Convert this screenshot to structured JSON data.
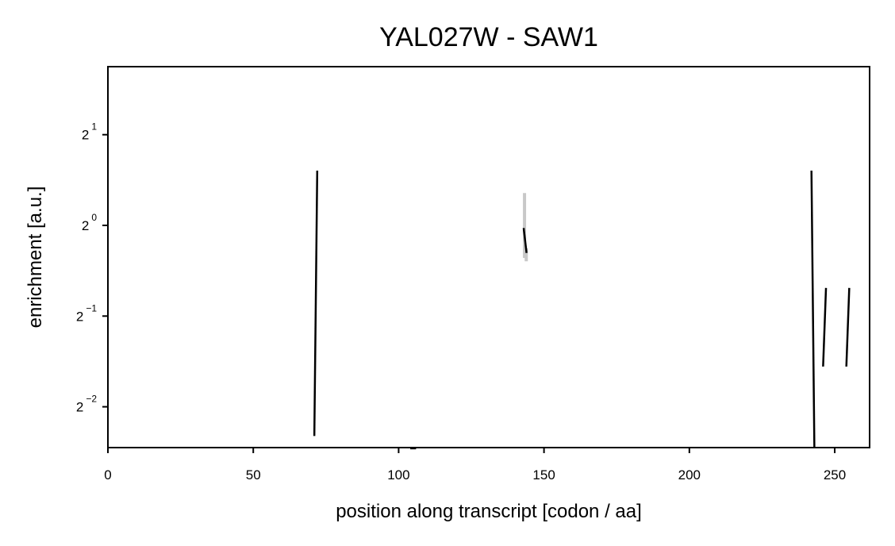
{
  "chart_data": {
    "type": "line",
    "title": "YAL027W - SAW1",
    "xlabel": "position along transcript [codon / aa]",
    "ylabel": "enrichment [a.u.]",
    "xlim": [
      0,
      262
    ],
    "ylim_log2": [
      -2.45,
      1.75
    ],
    "y_scale": "log2",
    "grid": false,
    "x_ticks": [
      {
        "value": 0,
        "label": "0"
      },
      {
        "value": 50,
        "label": "50"
      },
      {
        "value": 100,
        "label": "100"
      },
      {
        "value": 150,
        "label": "150"
      },
      {
        "value": 200,
        "label": "200"
      },
      {
        "value": 250,
        "label": "250"
      }
    ],
    "y_ticks": [
      {
        "exp": 1,
        "base": "2",
        "sup": "1"
      },
      {
        "exp": 0,
        "base": "2",
        "sup": "0"
      },
      {
        "exp": -1,
        "base": "2",
        "sup": "−1"
      },
      {
        "exp": -2,
        "base": "2",
        "sup": "−2"
      }
    ],
    "series": [
      {
        "color": "#000000",
        "segments": [
          [
            [
              71,
              0.2
            ],
            [
              72,
              1.52
            ]
          ],
          [
            [
              104,
              0.182
            ],
            [
              106,
              0.182
            ]
          ],
          [
            [
              143,
              0.98
            ],
            [
              144,
              0.81
            ]
          ],
          [
            [
              242,
              1.52
            ],
            [
              243,
              0.182
            ]
          ],
          [
            [
              246,
              0.34
            ],
            [
              247,
              0.62
            ]
          ],
          [
            [
              254,
              0.34
            ],
            [
              255,
              0.62
            ]
          ]
        ]
      }
    ],
    "error_band": {
      "color": "#c8c8c8",
      "segments": [
        [
          [
            143.3,
            0.78
          ],
          [
            143.3,
            1.28
          ]
        ],
        [
          [
            143.9,
            0.76
          ],
          [
            143.9,
            0.84
          ]
        ]
      ]
    }
  }
}
